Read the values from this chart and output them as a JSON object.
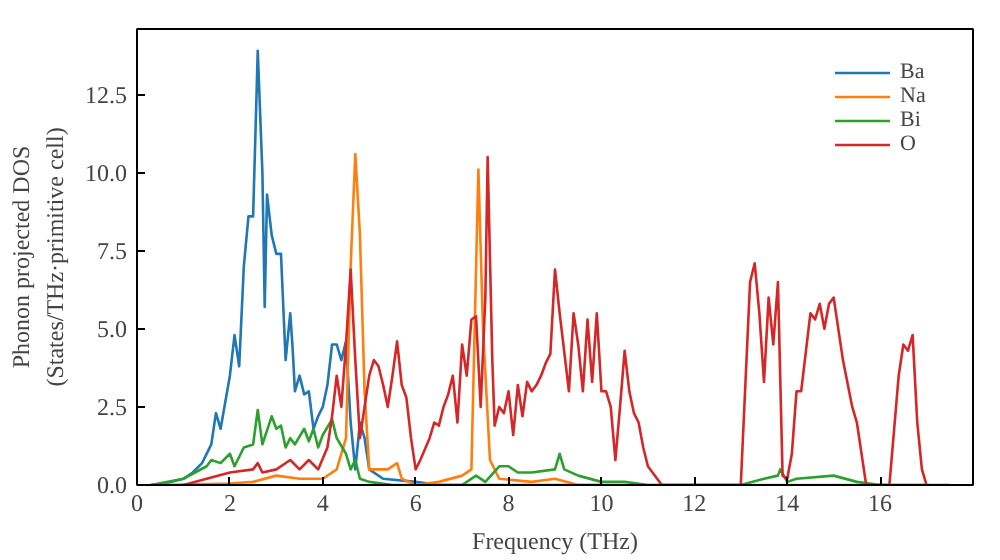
{
  "chart_data": {
    "type": "line",
    "xlabel": "Frequency (THz)",
    "ylabel": "Phonon projected DOS\n(States/THz·primitive cell)",
    "xlim": [
      0,
      18
    ],
    "ylim": [
      0,
      14.6
    ],
    "xticks": [
      0,
      2,
      4,
      6,
      8,
      10,
      12,
      14,
      16
    ],
    "yticks": [
      {
        "value": 0,
        "label": "0.0"
      },
      2.5,
      {
        "value": 5,
        "label": "5.0"
      },
      7.5,
      {
        "value": 10,
        "label": "10.0"
      },
      12.5
    ],
    "legend": "top right",
    "grid": false,
    "series": [
      {
        "name": "Ba",
        "color": "#1f77b4",
        "x": [
          0.3,
          0.6,
          1.0,
          1.2,
          1.4,
          1.6,
          1.7,
          1.8,
          2.0,
          2.1,
          2.2,
          2.3,
          2.4,
          2.5,
          2.6,
          2.7,
          2.75,
          2.8,
          2.9,
          3.0,
          3.1,
          3.2,
          3.3,
          3.35,
          3.4,
          3.5,
          3.6,
          3.7,
          3.8,
          3.9,
          4.0,
          4.1,
          4.2,
          4.3,
          4.4,
          4.5,
          4.6,
          4.7,
          4.8,
          4.9,
          5.0,
          5.3,
          6.0,
          6.5,
          10
        ],
        "values": [
          0,
          0.05,
          0.2,
          0.4,
          0.7,
          1.3,
          2.3,
          1.8,
          3.5,
          4.8,
          3.8,
          7.0,
          8.6,
          8.6,
          13.9,
          10.0,
          5.7,
          9.3,
          8.0,
          7.4,
          7.4,
          4.0,
          5.5,
          4.4,
          3.0,
          3.5,
          2.9,
          3.0,
          1.8,
          2.2,
          2.5,
          3.2,
          4.5,
          4.5,
          4.0,
          4.6,
          2.0,
          0.5,
          2.0,
          1.5,
          0.5,
          0.2,
          0.1,
          0,
          0
        ]
      },
      {
        "name": "Na",
        "color": "#ff7f0e",
        "x": [
          0.5,
          2.0,
          2.5,
          3.0,
          3.5,
          4.0,
          4.3,
          4.5,
          4.6,
          4.7,
          4.8,
          4.9,
          5.0,
          5.4,
          5.6,
          5.7,
          6.0,
          6.5,
          7.0,
          7.2,
          7.35,
          7.45,
          7.6,
          7.8,
          8.5,
          9.0,
          9.5,
          17
        ],
        "values": [
          0,
          0.05,
          0.1,
          0.3,
          0.2,
          0.2,
          0.5,
          1.5,
          7.0,
          10.6,
          8.0,
          3.0,
          0.5,
          0.5,
          0.7,
          0.2,
          0,
          0.1,
          0.3,
          0.5,
          10.1,
          5.0,
          0.8,
          0.2,
          0.1,
          0.2,
          0,
          0
        ]
      },
      {
        "name": "Bi",
        "color": "#2ca02c",
        "x": [
          0.3,
          1.0,
          1.5,
          1.6,
          1.8,
          2.0,
          2.1,
          2.3,
          2.5,
          2.6,
          2.7,
          2.9,
          3.0,
          3.1,
          3.2,
          3.3,
          3.4,
          3.6,
          3.7,
          3.8,
          3.9,
          4.0,
          4.2,
          4.3,
          4.5,
          4.6,
          4.7,
          4.8,
          5.0,
          5.5,
          7.0,
          7.3,
          7.5,
          7.8,
          8.0,
          8.2,
          8.5,
          9.0,
          9.1,
          9.2,
          9.5,
          10.0,
          10.5,
          11.0,
          13.0,
          13.5,
          13.8,
          13.85,
          14.0,
          14.2,
          15.0,
          15.5,
          16.0,
          17
        ],
        "values": [
          0,
          0.2,
          0.6,
          0.8,
          0.7,
          1.0,
          0.6,
          1.2,
          1.3,
          2.4,
          1.3,
          2.2,
          1.8,
          1.9,
          1.2,
          1.5,
          1.3,
          1.8,
          1.4,
          1.8,
          1.2,
          1.6,
          2.1,
          1.5,
          1.0,
          0.5,
          0.8,
          0.2,
          0.1,
          0,
          0,
          0.3,
          0.1,
          0.6,
          0.6,
          0.4,
          0.4,
          0.5,
          1.0,
          0.5,
          0.3,
          0.1,
          0.1,
          0,
          0,
          0.2,
          0.3,
          0.5,
          0.1,
          0.2,
          0.3,
          0.1,
          0,
          0
        ]
      },
      {
        "name": "O",
        "color": "#d62728",
        "x": [
          1.0,
          1.5,
          2.0,
          2.5,
          2.6,
          2.7,
          3.0,
          3.3,
          3.5,
          3.7,
          3.9,
          4.1,
          4.2,
          4.3,
          4.4,
          4.5,
          4.6,
          4.7,
          4.8,
          4.9,
          5.0,
          5.1,
          5.2,
          5.3,
          5.4,
          5.5,
          5.6,
          5.7,
          5.8,
          5.9,
          6.0,
          6.1,
          6.3,
          6.4,
          6.5,
          6.6,
          6.7,
          6.8,
          6.9,
          7.0,
          7.1,
          7.2,
          7.3,
          7.4,
          7.5,
          7.55,
          7.65,
          7.7,
          7.8,
          7.9,
          8.0,
          8.1,
          8.2,
          8.3,
          8.4,
          8.5,
          8.6,
          8.7,
          8.8,
          8.9,
          9.0,
          9.1,
          9.3,
          9.4,
          9.5,
          9.6,
          9.7,
          9.8,
          9.9,
          10.0,
          10.1,
          10.2,
          10.3,
          10.4,
          10.5,
          10.6,
          10.7,
          10.8,
          10.9,
          11.0,
          11.3,
          13.0,
          13.2,
          13.3,
          13.4,
          13.5,
          13.6,
          13.7,
          13.8,
          13.9,
          14.0,
          14.1,
          14.2,
          14.3,
          14.5,
          14.6,
          14.7,
          14.8,
          14.9,
          15.0,
          15.2,
          15.4,
          15.5,
          15.6,
          15.7,
          16.2,
          16.4,
          16.5,
          16.6,
          16.7,
          16.8,
          16.9,
          17.0,
          17.5
        ],
        "values": [
          0,
          0.2,
          0.4,
          0.5,
          0.7,
          0.4,
          0.5,
          0.8,
          0.5,
          0.8,
          0.5,
          1.2,
          2.2,
          3.5,
          2.5,
          4.5,
          6.9,
          4.0,
          1.5,
          2.5,
          3.5,
          4.0,
          3.8,
          3.2,
          2.5,
          3.5,
          4.6,
          3.2,
          2.8,
          1.5,
          0.5,
          0.8,
          1.5,
          2.0,
          1.9,
          2.5,
          2.9,
          3.5,
          2.0,
          4.5,
          3.5,
          5.3,
          5.4,
          2.5,
          6.0,
          10.5,
          4.0,
          1.9,
          2.5,
          2.3,
          3.0,
          1.6,
          3.2,
          2.2,
          3.3,
          3.0,
          3.2,
          3.5,
          3.9,
          4.2,
          6.9,
          5.5,
          3.0,
          5.5,
          4.5,
          3.0,
          5.3,
          3.3,
          5.5,
          3.0,
          3.0,
          2.5,
          0.8,
          2.5,
          4.3,
          3.0,
          2.3,
          2.0,
          1.2,
          0.6,
          0,
          0,
          6.5,
          7.1,
          5.5,
          3.3,
          6.0,
          4.5,
          6.5,
          0.3,
          0.2,
          1.0,
          3.0,
          3.0,
          5.5,
          5.3,
          5.8,
          5.0,
          5.8,
          6.0,
          4.0,
          2.5,
          2.0,
          1.0,
          0,
          0,
          3.5,
          4.5,
          4.3,
          4.8,
          2.0,
          0.5,
          0,
          0
        ]
      }
    ]
  }
}
